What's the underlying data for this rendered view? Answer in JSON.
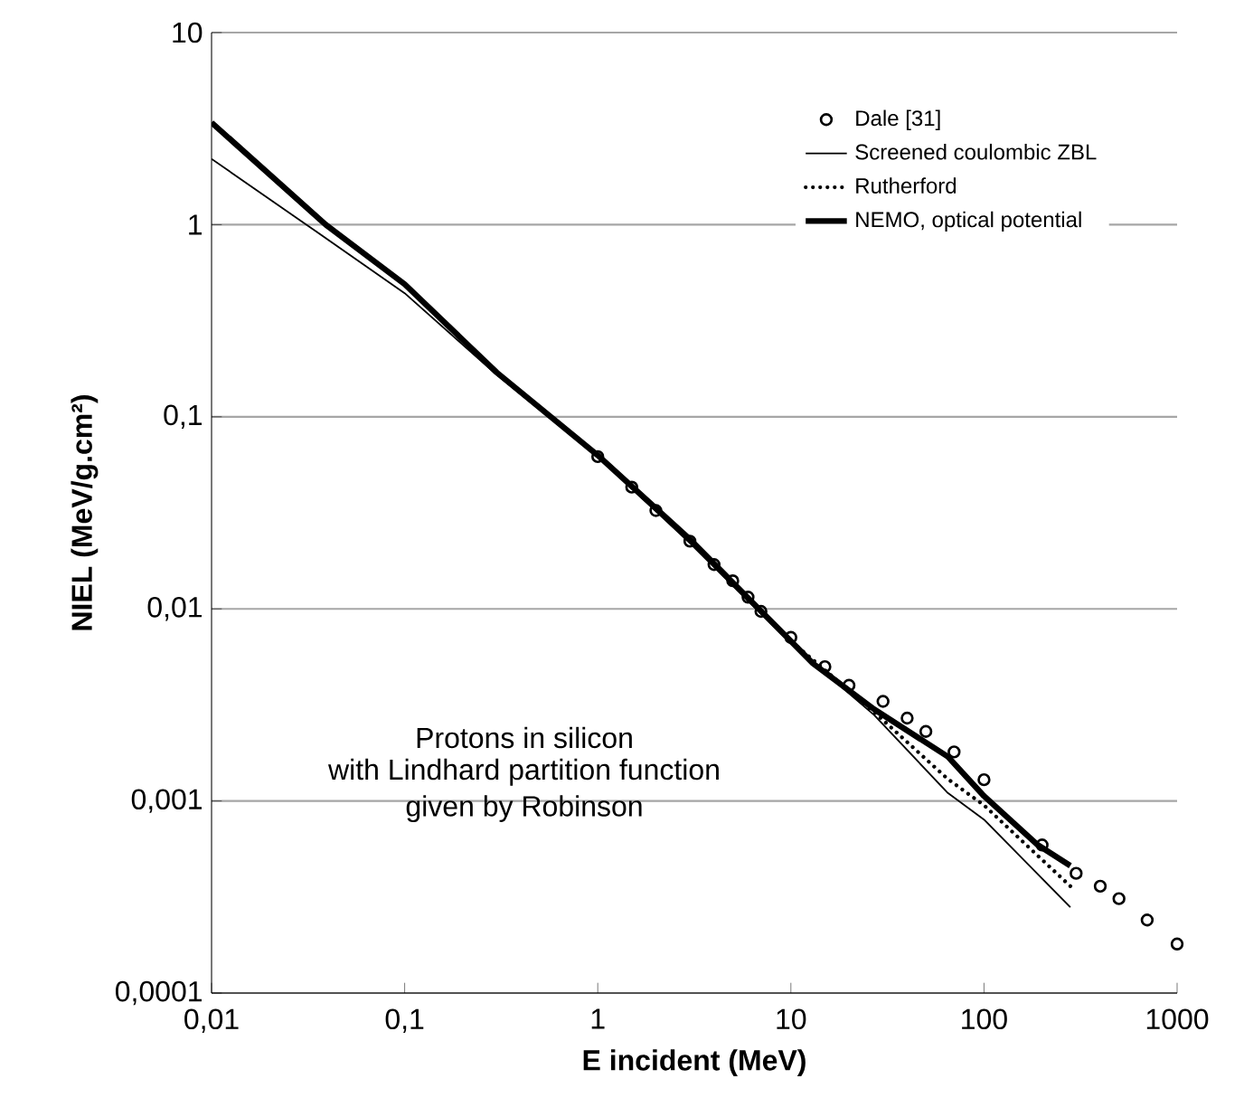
{
  "chart_data": {
    "type": "line",
    "xlabel": "E incident (MeV)",
    "ylabel": "NIEL (MeV/g.cm²)",
    "log": "xy",
    "grid": "y",
    "legend": "top right",
    "xlim": [
      0.01,
      1000
    ],
    "ylim": [
      0.0001,
      10
    ],
    "xticks": [
      {
        "value": 0.01,
        "label": "0,01"
      },
      {
        "value": 0.1,
        "label": "0,1"
      },
      1,
      10,
      100,
      1000
    ],
    "yticks": [
      {
        "value": 0.0001,
        "label": "0,0001"
      },
      {
        "value": 0.001,
        "label": "0,001"
      },
      {
        "value": 0.01,
        "label": "0,01"
      },
      {
        "value": 0.1,
        "label": "0,1"
      },
      1,
      10
    ],
    "annotations": [
      "Protons in silicon",
      "with Lindhard partition function",
      "given by Robinson"
    ],
    "series": [
      {
        "name": "Dale [31]",
        "type": "scatter",
        "marker": "circle",
        "color": "#000000",
        "x": [
          1,
          1.5,
          2,
          3,
          4,
          5,
          6,
          7,
          10,
          15,
          20,
          30,
          40,
          50,
          70,
          100,
          200,
          300,
          400,
          500,
          700,
          1000
        ],
        "values": [
          0.062,
          0.043,
          0.0325,
          0.0225,
          0.017,
          0.014,
          0.0115,
          0.0097,
          0.0071,
          0.005,
          0.004,
          0.0033,
          0.0027,
          0.0023,
          0.0018,
          0.00129,
          0.00059,
          0.00042,
          0.00036,
          0.00031,
          0.00024,
          0.00018
        ]
      },
      {
        "name": "Screened coulombic ZBL",
        "line_style": "solid",
        "color": "#000000",
        "x": [
          0.01,
          0.031,
          0.1,
          0.3,
          1,
          3,
          10,
          27,
          65,
          100,
          280
        ],
        "values": [
          2.2,
          1.0,
          0.44,
          0.165,
          0.062,
          0.022,
          0.0066,
          0.0028,
          0.0011,
          0.0008,
          0.00028
        ]
      },
      {
        "name": "Rutherford",
        "line_style": "dotted",
        "color": "#000000",
        "x": [
          3,
          10,
          27,
          65,
          100,
          280
        ],
        "values": [
          0.023,
          0.0068,
          0.0029,
          0.0013,
          0.00095,
          0.00036
        ]
      },
      {
        "name": "NEMO, optical potential",
        "line_style": "solid",
        "color": "#000000",
        "x": [
          0.01,
          0.039,
          0.1,
          0.3,
          1,
          3,
          13,
          27,
          65,
          100,
          190,
          280
        ],
        "values": [
          3.4,
          1.0,
          0.49,
          0.17,
          0.063,
          0.023,
          0.0052,
          0.003,
          0.0017,
          0.00106,
          0.00059,
          0.00046
        ]
      }
    ]
  }
}
